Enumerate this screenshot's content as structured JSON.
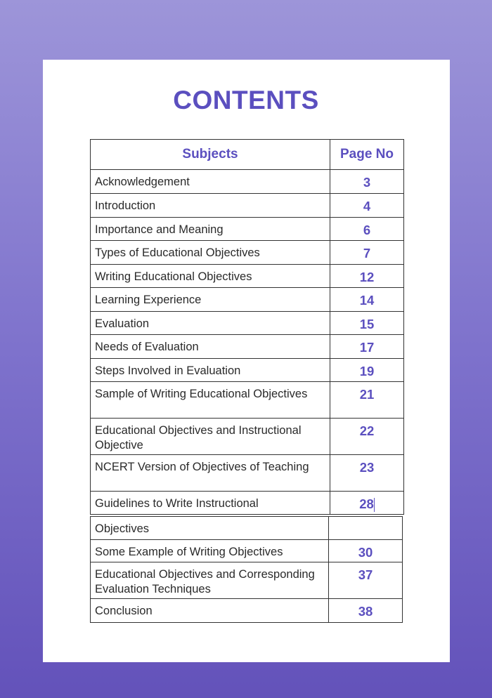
{
  "title": "CONTENTS",
  "table": {
    "headers": [
      "Subjects",
      "Page No"
    ],
    "rows": [
      {
        "subject": "Acknowledgement",
        "page": "3"
      },
      {
        "subject": "Introduction",
        "page": "4"
      },
      {
        "subject": "Importance and Meaning",
        "page": "6"
      },
      {
        "subject": "Types of Educational Objectives",
        "page": "7"
      },
      {
        "subject": "Writing Educational Objectives",
        "page": "12"
      },
      {
        "subject": "Learning Experience",
        "page": "14"
      },
      {
        "subject": "Evaluation",
        "page": "15"
      },
      {
        "subject": "Needs of Evaluation",
        "page": "17"
      },
      {
        "subject": "Steps Involved in Evaluation",
        "page": "19"
      },
      {
        "subject": "Sample of Writing Educational Objectives",
        "page": "21"
      },
      {
        "subject": "Educational Objectives and Instructional Objective",
        "page": "22"
      },
      {
        "subject": "NCERT Version of Objectives of Teaching",
        "page": "23"
      },
      {
        "subject": "Guidelines to Write Instructional",
        "page": "28"
      }
    ],
    "rows2": [
      {
        "subject": "Objectives",
        "page": ""
      },
      {
        "subject": "Some Example of Writing Objectives",
        "page": "30"
      },
      {
        "subject": "Educational Objectives and Corresponding Evaluation Techniques",
        "page": "37"
      },
      {
        "subject": "Conclusion",
        "page": "38"
      }
    ]
  },
  "colors": {
    "accent": "#5b4fbf"
  }
}
